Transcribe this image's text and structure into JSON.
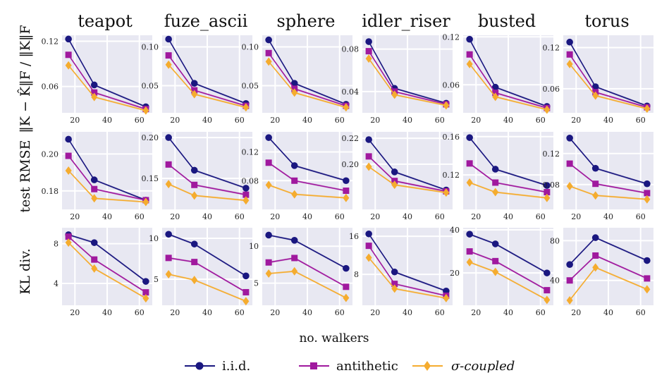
{
  "figure": {
    "xlabel": "no. walkers",
    "row_labels": [
      "‖K − K̂‖F / ‖K‖F",
      "test RMSE",
      "KL div."
    ],
    "legend": [
      "i.i.d.",
      "antithetic",
      "σ-coupled"
    ],
    "colors": {
      "iid": "#1a1780",
      "antithetic": "#a0199e",
      "sigma": "#f5ac2f",
      "panel_bg": "#e8e8f2"
    }
  },
  "chart_data": [
    {
      "type": "line",
      "title": "teapot",
      "row": "‖K − K̂‖F / ‖K‖F",
      "x": [
        16,
        32,
        64
      ],
      "xticks": [
        20,
        40,
        60
      ],
      "xlim": [
        12,
        68
      ],
      "ylim": [
        0.025,
        0.128
      ],
      "yticks": [
        0.06,
        0.12
      ],
      "ytick_labels": [
        "0.06",
        "0.12"
      ],
      "series": [
        {
          "name": "i.i.d.",
          "values": [
            0.123,
            0.062,
            0.033
          ]
        },
        {
          "name": "antithetic",
          "values": [
            0.102,
            0.052,
            0.03
          ]
        },
        {
          "name": "σ-coupled",
          "values": [
            0.088,
            0.046,
            0.028
          ]
        }
      ]
    },
    {
      "type": "line",
      "title": "fuze_ascii",
      "row": "‖K − K̂‖F / ‖K‖F",
      "x": [
        16,
        32,
        64
      ],
      "xticks": [
        20,
        40,
        60
      ],
      "xlim": [
        12,
        68
      ],
      "ylim": [
        0.015,
        0.115
      ],
      "yticks": [
        0.05,
        0.1
      ],
      "ytick_labels": [
        "0.05",
        "0.10"
      ],
      "series": [
        {
          "name": "i.i.d.",
          "values": [
            0.11,
            0.053,
            0.027
          ]
        },
        {
          "name": "antithetic",
          "values": [
            0.089,
            0.044,
            0.024
          ]
        },
        {
          "name": "σ-coupled",
          "values": [
            0.077,
            0.039,
            0.022
          ]
        }
      ]
    },
    {
      "type": "line",
      "title": "sphere",
      "row": "‖K − K̂‖F / ‖K‖F",
      "x": [
        16,
        32,
        64
      ],
      "xticks": [
        20,
        40,
        60
      ],
      "xlim": [
        12,
        68
      ],
      "ylim": [
        0.015,
        0.115
      ],
      "yticks": [
        0.05,
        0.1
      ],
      "ytick_labels": [
        "0.05",
        "0.10"
      ],
      "series": [
        {
          "name": "i.i.d.",
          "values": [
            0.109,
            0.053,
            0.026
          ]
        },
        {
          "name": "antithetic",
          "values": [
            0.092,
            0.046,
            0.024
          ]
        },
        {
          "name": "σ-coupled",
          "values": [
            0.081,
            0.041,
            0.022
          ]
        }
      ]
    },
    {
      "type": "line",
      "title": "idler_riser",
      "row": "‖K − K̂‖F / ‖K‖F",
      "x": [
        16,
        32,
        64
      ],
      "xticks": [
        20,
        40,
        60
      ],
      "xlim": [
        12,
        68
      ],
      "ylim": [
        0.02,
        0.093
      ],
      "yticks": [
        0.04,
        0.08
      ],
      "ytick_labels": [
        "0.04",
        "0.08"
      ],
      "series": [
        {
          "name": "i.i.d.",
          "values": [
            0.087,
            0.043,
            0.029
          ]
        },
        {
          "name": "antithetic",
          "values": [
            0.078,
            0.04,
            0.028
          ]
        },
        {
          "name": "σ-coupled",
          "values": [
            0.071,
            0.037,
            0.027
          ]
        }
      ]
    },
    {
      "type": "line",
      "title": "busted",
      "row": "‖K − K̂‖F / ‖K‖F",
      "x": [
        16,
        32,
        64
      ],
      "xticks": [
        20,
        40,
        60
      ],
      "xlim": [
        12,
        68
      ],
      "ylim": [
        0.025,
        0.122
      ],
      "yticks": [
        0.06,
        0.12
      ],
      "ytick_labels": [
        "0.06",
        "0.12"
      ],
      "series": [
        {
          "name": "i.i.d.",
          "values": [
            0.117,
            0.057,
            0.033
          ]
        },
        {
          "name": "antithetic",
          "values": [
            0.098,
            0.05,
            0.031
          ]
        },
        {
          "name": "σ-coupled",
          "values": [
            0.086,
            0.045,
            0.029
          ]
        }
      ]
    },
    {
      "type": "line",
      "title": "torus",
      "row": "‖K − K̂‖F / ‖K‖F",
      "x": [
        16,
        32,
        64
      ],
      "xticks": [
        20,
        40,
        60
      ],
      "xlim": [
        12,
        68
      ],
      "ylim": [
        0.025,
        0.138
      ],
      "yticks": [
        0.06,
        0.12
      ],
      "ytick_labels": [
        "0.06",
        "0.12"
      ],
      "series": [
        {
          "name": "i.i.d.",
          "values": [
            0.128,
            0.063,
            0.035
          ]
        },
        {
          "name": "antithetic",
          "values": [
            0.11,
            0.055,
            0.033
          ]
        },
        {
          "name": "σ-coupled",
          "values": [
            0.096,
            0.05,
            0.031
          ]
        }
      ]
    },
    {
      "type": "line",
      "title": "",
      "row": "test RMSE",
      "x": [
        16,
        32,
        64
      ],
      "xticks": [
        20,
        40,
        60
      ],
      "xlim": [
        12,
        68
      ],
      "ylim": [
        0.17,
        0.212
      ],
      "yticks": [
        0.18,
        0.2
      ],
      "ytick_labels": [
        "0.18",
        "0.20"
      ],
      "series": [
        {
          "name": "i.i.d.",
          "values": [
            0.208,
            0.186,
            0.175
          ]
        },
        {
          "name": "antithetic",
          "values": [
            0.199,
            0.181,
            0.175
          ]
        },
        {
          "name": "σ-coupled",
          "values": [
            0.191,
            0.176,
            0.174
          ]
        }
      ]
    },
    {
      "type": "line",
      "title": "",
      "row": "test RMSE",
      "x": [
        16,
        32,
        64
      ],
      "xticks": [
        20,
        40,
        60
      ],
      "xlim": [
        12,
        68
      ],
      "ylim": [
        0.112,
        0.207
      ],
      "yticks": [
        0.15,
        0.2
      ],
      "ytick_labels": [
        "0.15",
        "0.20"
      ],
      "series": [
        {
          "name": "i.i.d.",
          "values": [
            0.2,
            0.16,
            0.138
          ]
        },
        {
          "name": "antithetic",
          "values": [
            0.167,
            0.142,
            0.13
          ]
        },
        {
          "name": "σ-coupled",
          "values": [
            0.143,
            0.129,
            0.123
          ]
        }
      ]
    },
    {
      "type": "line",
      "title": "",
      "row": "test RMSE",
      "x": [
        16,
        32,
        64
      ],
      "xticks": [
        20,
        40,
        60
      ],
      "xlim": [
        12,
        68
      ],
      "ylim": [
        0.04,
        0.148
      ],
      "yticks": [
        0.08,
        0.12
      ],
      "ytick_labels": [
        "0.08",
        "0.12"
      ],
      "series": [
        {
          "name": "i.i.d.",
          "values": [
            0.14,
            0.101,
            0.08
          ]
        },
        {
          "name": "antithetic",
          "values": [
            0.105,
            0.08,
            0.066
          ]
        },
        {
          "name": "σ-coupled",
          "values": [
            0.074,
            0.061,
            0.056
          ]
        }
      ]
    },
    {
      "type": "line",
      "title": "",
      "row": "test RMSE",
      "x": [
        16,
        32,
        64
      ],
      "xticks": [
        20,
        40,
        60
      ],
      "xlim": [
        12,
        68
      ],
      "ylim": [
        0.165,
        0.225
      ],
      "yticks": [
        0.2,
        0.22
      ],
      "ytick_labels": [
        "0.20",
        "0.22"
      ],
      "series": [
        {
          "name": "i.i.d.",
          "values": [
            0.219,
            0.194,
            0.18
          ]
        },
        {
          "name": "antithetic",
          "values": [
            0.206,
            0.187,
            0.179
          ]
        },
        {
          "name": "σ-coupled",
          "values": [
            0.198,
            0.184,
            0.178
          ]
        }
      ]
    },
    {
      "type": "line",
      "title": "",
      "row": "test RMSE",
      "x": [
        16,
        32,
        64
      ],
      "xticks": [
        20,
        40,
        60
      ],
      "xlim": [
        12,
        68
      ],
      "ylim": [
        0.084,
        0.165
      ],
      "yticks": [
        0.12,
        0.16
      ],
      "ytick_labels": [
        "0.12",
        "0.16"
      ],
      "series": [
        {
          "name": "i.i.d.",
          "values": [
            0.159,
            0.126,
            0.109
          ]
        },
        {
          "name": "antithetic",
          "values": [
            0.132,
            0.112,
            0.102
          ]
        },
        {
          "name": "σ-coupled",
          "values": [
            0.112,
            0.102,
            0.096
          ]
        }
      ]
    },
    {
      "type": "line",
      "title": "",
      "row": "test RMSE",
      "x": [
        16,
        32,
        64
      ],
      "xticks": [
        20,
        40,
        60
      ],
      "xlim": [
        12,
        68
      ],
      "ylim": [
        0.048,
        0.148
      ],
      "yticks": [
        0.08,
        0.12
      ],
      "ytick_labels": [
        "0.08",
        "0.12"
      ],
      "series": [
        {
          "name": "i.i.d.",
          "values": [
            0.14,
            0.101,
            0.081
          ]
        },
        {
          "name": "antithetic",
          "values": [
            0.107,
            0.081,
            0.069
          ]
        },
        {
          "name": "σ-coupled",
          "values": [
            0.078,
            0.066,
            0.061
          ]
        }
      ]
    },
    {
      "type": "line",
      "title": "",
      "row": "KL div.",
      "x": [
        16,
        32,
        64
      ],
      "xticks": [
        20,
        40,
        60
      ],
      "xlim": [
        12,
        68
      ],
      "ylim": [
        1.8,
        9.6
      ],
      "yticks": [
        4,
        8
      ],
      "ytick_labels": [
        "4",
        "8"
      ],
      "series": [
        {
          "name": "i.i.d.",
          "values": [
            8.9,
            8.1,
            4.2
          ]
        },
        {
          "name": "antithetic",
          "values": [
            8.7,
            6.4,
            3.1
          ]
        },
        {
          "name": "σ-coupled",
          "values": [
            8.1,
            5.5,
            2.5
          ]
        }
      ]
    },
    {
      "type": "line",
      "title": "",
      "row": "KL div.",
      "x": [
        16,
        32,
        64
      ],
      "xticks": [
        20,
        40,
        60
      ],
      "xlim": [
        12,
        68
      ],
      "ylim": [
        1.8,
        11.3
      ],
      "yticks": [
        5,
        10
      ],
      "ytick_labels": [
        "5",
        "10"
      ],
      "series": [
        {
          "name": "i.i.d.",
          "values": [
            10.5,
            9.3,
            5.4
          ]
        },
        {
          "name": "antithetic",
          "values": [
            7.6,
            7.1,
            3.4
          ]
        },
        {
          "name": "σ-coupled",
          "values": [
            5.6,
            4.9,
            2.3
          ]
        }
      ]
    },
    {
      "type": "line",
      "title": "",
      "row": "KL div.",
      "x": [
        16,
        32,
        64
      ],
      "xticks": [
        20,
        40,
        60
      ],
      "xlim": [
        12,
        68
      ],
      "ylim": [
        2.0,
        12.5
      ],
      "yticks": [
        5,
        10
      ],
      "ytick_labels": [
        "5",
        "10"
      ],
      "series": [
        {
          "name": "i.i.d.",
          "values": [
            11.5,
            10.8,
            7.0
          ]
        },
        {
          "name": "antithetic",
          "values": [
            7.8,
            8.4,
            4.5
          ]
        },
        {
          "name": "σ-coupled",
          "values": [
            6.3,
            6.6,
            3.0
          ]
        }
      ]
    },
    {
      "type": "line",
      "title": "",
      "row": "KL div.",
      "x": [
        16,
        32,
        64
      ],
      "xticks": [
        20,
        40,
        60
      ],
      "xlim": [
        12,
        68
      ],
      "ylim": [
        1.5,
        17.8
      ],
      "yticks": [
        8,
        16
      ],
      "ytick_labels": [
        "8",
        "16"
      ],
      "series": [
        {
          "name": "i.i.d.",
          "values": [
            16.5,
            8.5,
            4.5
          ]
        },
        {
          "name": "antithetic",
          "values": [
            14.0,
            6.0,
            3.5
          ]
        },
        {
          "name": "σ-coupled",
          "values": [
            11.5,
            5.0,
            3.0
          ]
        }
      ]
    },
    {
      "type": "line",
      "title": "",
      "row": "KL div.",
      "x": [
        16,
        32,
        64
      ],
      "xticks": [
        20,
        40,
        60
      ],
      "xlim": [
        12,
        68
      ],
      "ylim": [
        5,
        41
      ],
      "yticks": [
        20,
        40
      ],
      "ytick_labels": [
        "20",
        "40"
      ],
      "series": [
        {
          "name": "i.i.d.",
          "values": [
            38,
            33.5,
            20
          ]
        },
        {
          "name": "antithetic",
          "values": [
            30,
            25.5,
            12
          ]
        },
        {
          "name": "σ-coupled",
          "values": [
            25,
            20.5,
            7.5
          ]
        }
      ]
    },
    {
      "type": "line",
      "title": "",
      "row": "KL div.",
      "x": [
        16,
        32,
        64
      ],
      "xticks": [
        20,
        40,
        60
      ],
      "xlim": [
        12,
        68
      ],
      "ylim": [
        15,
        93
      ],
      "yticks": [
        40,
        80
      ],
      "ytick_labels": [
        "40",
        "80"
      ],
      "series": [
        {
          "name": "i.i.d.",
          "values": [
            56,
            83,
            60
          ]
        },
        {
          "name": "antithetic",
          "values": [
            40,
            65,
            42
          ]
        },
        {
          "name": "σ-coupled",
          "values": [
            20,
            53,
            31
          ]
        }
      ]
    }
  ]
}
